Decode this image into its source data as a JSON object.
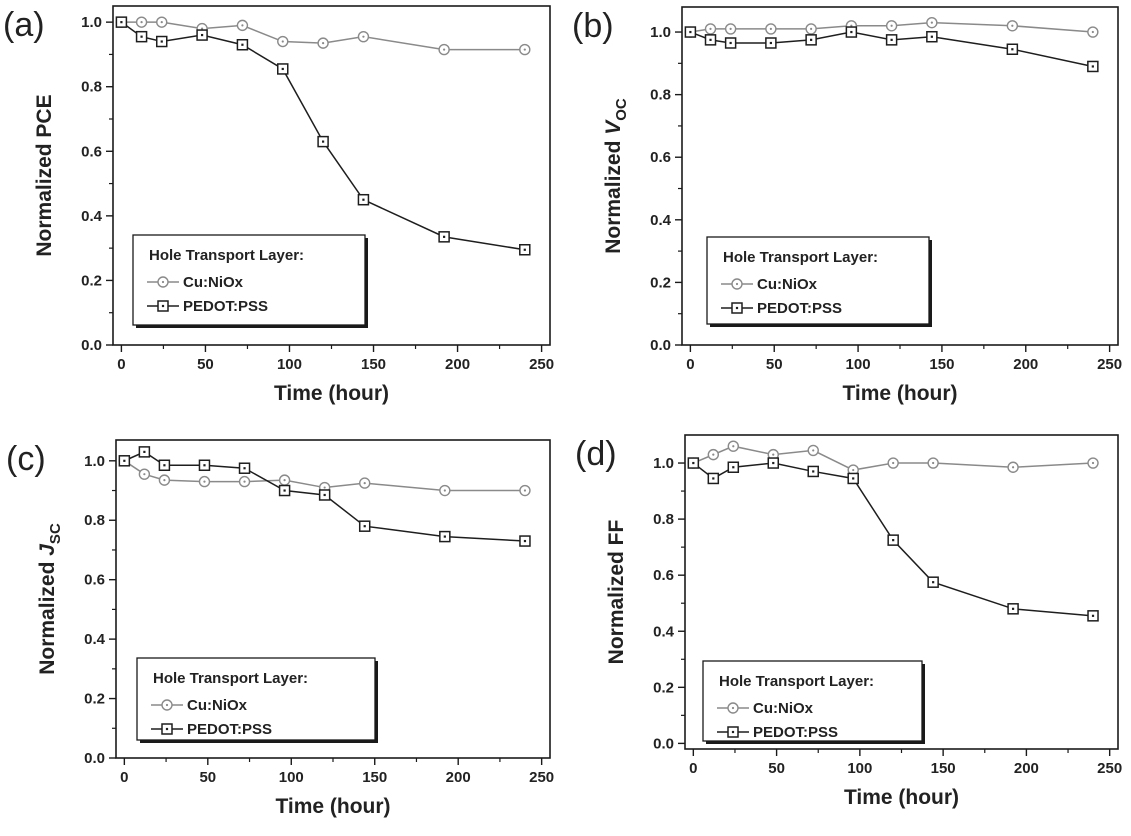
{
  "chart_data": [
    {
      "panel_label": "(a)",
      "type": "line",
      "xlabel": "Time (hour)",
      "ylabel": "Normalized PCE",
      "ylabel_main": "Normalized PCE",
      "ylabel_sub": "",
      "xlim": [
        -5,
        255
      ],
      "ylim": [
        0,
        1.05
      ],
      "xticks": [
        0,
        50,
        100,
        150,
        200,
        250
      ],
      "xtick_labels": [
        "0",
        "50",
        "100",
        "150",
        "200",
        "250"
      ],
      "yticks": [
        0,
        0.2,
        0.4,
        0.6,
        0.8,
        1.0
      ],
      "ytick_labels": [
        "0.0",
        "0.2",
        "0.4",
        "0.6",
        "0.8",
        "1.0"
      ],
      "legend": {
        "title": "Hole Transport Layer:",
        "placement": "bottom-left"
      },
      "series": [
        {
          "name": "Cu:NiOx",
          "marker": "circle",
          "color": "#8a8a8a",
          "x": [
            0,
            12,
            24,
            48,
            72,
            96,
            120,
            144,
            192,
            240
          ],
          "y": [
            1.0,
            1.0,
            1.0,
            0.98,
            0.99,
            0.94,
            0.935,
            0.955,
            0.915,
            0.915
          ]
        },
        {
          "name": "PEDOT:PSS",
          "marker": "square",
          "color": "#1e1e1e",
          "x": [
            0,
            12,
            24,
            48,
            72,
            96,
            120,
            144,
            192,
            240
          ],
          "y": [
            1.0,
            0.955,
            0.94,
            0.96,
            0.93,
            0.855,
            0.63,
            0.45,
            0.335,
            0.295
          ]
        }
      ]
    },
    {
      "panel_label": "(b)",
      "type": "line",
      "xlabel": "Time (hour)",
      "ylabel": "Normalized Voc",
      "ylabel_main": "Normalized ",
      "ylabel_italic": "V",
      "ylabel_sub": "OC",
      "xlim": [
        -5,
        255
      ],
      "ylim": [
        0,
        1.08
      ],
      "xticks": [
        0,
        50,
        100,
        150,
        200,
        250
      ],
      "xtick_labels": [
        "0",
        "50",
        "100",
        "150",
        "200",
        "250"
      ],
      "yticks": [
        0,
        0.2,
        0.4,
        0.6,
        0.8,
        1.0
      ],
      "ytick_labels": [
        "0.0",
        "0.2",
        "0.4",
        "0.6",
        "0.8",
        "1.0"
      ],
      "legend": {
        "title": "Hole Transport Layer:",
        "placement": "bottom-left"
      },
      "series": [
        {
          "name": "Cu:NiOx",
          "marker": "circle",
          "color": "#8a8a8a",
          "x": [
            0,
            12,
            24,
            48,
            72,
            96,
            120,
            144,
            192,
            240
          ],
          "y": [
            1.0,
            1.01,
            1.01,
            1.01,
            1.01,
            1.02,
            1.02,
            1.03,
            1.02,
            1.0
          ]
        },
        {
          "name": "PEDOT:PSS",
          "marker": "square",
          "color": "#1e1e1e",
          "x": [
            0,
            12,
            24,
            48,
            72,
            96,
            120,
            144,
            192,
            240
          ],
          "y": [
            1.0,
            0.975,
            0.965,
            0.965,
            0.975,
            1.0,
            0.975,
            0.985,
            0.945,
            0.89
          ]
        }
      ]
    },
    {
      "panel_label": "(c)",
      "type": "line",
      "xlabel": "Time (hour)",
      "ylabel": "Normalized Jsc",
      "ylabel_main": "Normalized ",
      "ylabel_italic": "J",
      "ylabel_sub": "SC",
      "xlim": [
        -5,
        255
      ],
      "ylim": [
        0,
        1.07
      ],
      "xticks": [
        0,
        50,
        100,
        150,
        200,
        250
      ],
      "xtick_labels": [
        "0",
        "50",
        "100",
        "150",
        "200",
        "250"
      ],
      "yticks": [
        0,
        0.2,
        0.4,
        0.6,
        0.8,
        1.0
      ],
      "ytick_labels": [
        "0.0",
        "0.2",
        "0.4",
        "0.6",
        "0.8",
        "1.0"
      ],
      "legend": {
        "title": "Hole Transport Layer:",
        "placement": "bottom-left"
      },
      "series": [
        {
          "name": "Cu:NiOx",
          "marker": "circle",
          "color": "#8a8a8a",
          "x": [
            0,
            12,
            24,
            48,
            72,
            96,
            120,
            144,
            192,
            240
          ],
          "y": [
            1.0,
            0.955,
            0.935,
            0.93,
            0.93,
            0.935,
            0.91,
            0.925,
            0.9,
            0.9
          ]
        },
        {
          "name": "PEDOT:PSS",
          "marker": "square",
          "color": "#1e1e1e",
          "x": [
            0,
            12,
            24,
            48,
            72,
            96,
            120,
            144,
            192,
            240
          ],
          "y": [
            1.0,
            1.03,
            0.985,
            0.985,
            0.975,
            0.9,
            0.885,
            0.78,
            0.745,
            0.73
          ]
        }
      ]
    },
    {
      "panel_label": "(d)",
      "type": "line",
      "xlabel": "Time (hour)",
      "ylabel": "Normalized FF",
      "ylabel_main": "Normalized FF",
      "ylabel_sub": "",
      "xlim": [
        -5,
        255
      ],
      "ylim": [
        -0.02,
        1.1
      ],
      "xticks": [
        0,
        50,
        100,
        150,
        200,
        250
      ],
      "xtick_labels": [
        "0",
        "50",
        "100",
        "150",
        "200",
        "250"
      ],
      "yticks": [
        0,
        0.2,
        0.4,
        0.6,
        0.8,
        1.0
      ],
      "ytick_labels": [
        "0.0",
        "0.2",
        "0.4",
        "0.6",
        "0.8",
        "1.0"
      ],
      "legend": {
        "title": "Hole Transport Layer:",
        "placement": "bottom-left"
      },
      "series": [
        {
          "name": "Cu:NiOx",
          "marker": "circle",
          "color": "#8a8a8a",
          "x": [
            0,
            12,
            24,
            48,
            72,
            96,
            120,
            144,
            192,
            240
          ],
          "y": [
            1.0,
            1.03,
            1.06,
            1.03,
            1.045,
            0.975,
            1.0,
            1.0,
            0.985,
            1.0
          ]
        },
        {
          "name": "PEDOT:PSS",
          "marker": "square",
          "color": "#1e1e1e",
          "x": [
            0,
            12,
            24,
            48,
            72,
            96,
            120,
            144,
            192,
            240
          ],
          "y": [
            1.0,
            0.945,
            0.985,
            1.0,
            0.97,
            0.945,
            0.725,
            0.575,
            0.48,
            0.455
          ]
        }
      ]
    }
  ]
}
